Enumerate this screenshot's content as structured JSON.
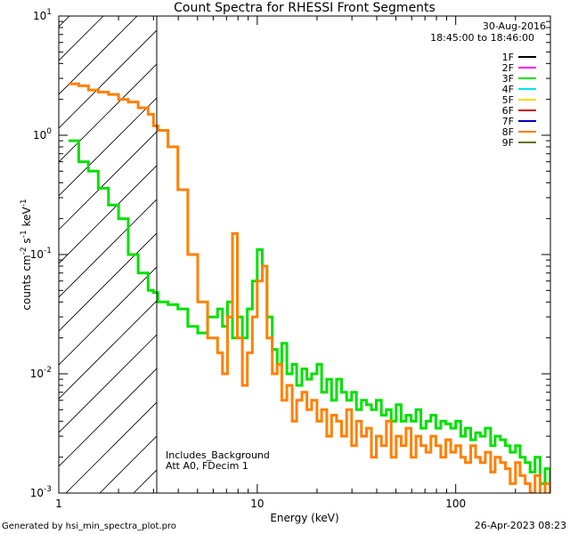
{
  "chart_data": {
    "type": "line",
    "title": "Count Spectra for RHESSI Front Segments",
    "xlabel": "Energy (keV)",
    "ylabel_parts": [
      "counts cm",
      "-2",
      " s",
      "-1",
      " keV",
      "-1"
    ],
    "xscale": "log",
    "yscale": "log",
    "xlim": [
      1,
      300
    ],
    "ylim": [
      0.001,
      10
    ],
    "x_ticks": [
      {
        "value": 1,
        "label": "1"
      },
      {
        "value": 10,
        "label": "10"
      },
      {
        "value": 100,
        "label": "100"
      }
    ],
    "y_ticks": [
      {
        "value": 0.001,
        "base": "10",
        "exp": "-3"
      },
      {
        "value": 0.01,
        "base": "10",
        "exp": "-2"
      },
      {
        "value": 0.1,
        "base": "10",
        "exp": "-1"
      },
      {
        "value": 1,
        "base": "10",
        "exp": "0"
      },
      {
        "value": 10,
        "base": "10",
        "exp": "1"
      }
    ],
    "excluded_region": {
      "from": 1,
      "to": 3
    },
    "date": "30-Aug-2016",
    "time_range": "18:45:00 to 18:46:00",
    "annotations": [
      "Includes_Background",
      "Att A0, FDecim 1"
    ],
    "legend": [
      {
        "label": "1F",
        "color": "#000000"
      },
      {
        "label": "2F",
        "color": "#ff00ff"
      },
      {
        "label": "3F",
        "color": "#00e000"
      },
      {
        "label": "4F",
        "color": "#00e5ee"
      },
      {
        "label": "5F",
        "color": "#ffd700"
      },
      {
        "label": "6F",
        "color": "#d00000"
      },
      {
        "label": "7F",
        "color": "#0000c8"
      },
      {
        "label": "8F",
        "color": "#ff8000"
      },
      {
        "label": "9F",
        "color": "#6b6b00"
      }
    ],
    "series": [
      {
        "name": "3F",
        "color": "#00e000",
        "x": [
          1.12,
          1.26,
          1.41,
          1.58,
          1.78,
          2.0,
          2.24,
          2.51,
          2.82,
          3.0,
          3.16,
          3.55,
          3.98,
          4.47,
          5.01,
          5.62,
          6.31,
          6.68,
          7.08,
          7.5,
          7.94,
          8.41,
          8.91,
          9.44,
          10.0,
          10.6,
          11.2,
          11.9,
          12.6,
          13.3,
          14.1,
          15.0,
          15.8,
          16.8,
          17.8,
          18.8,
          20.0,
          21.1,
          22.4,
          23.7,
          25.1,
          26.6,
          28.2,
          29.9,
          31.6,
          33.5,
          35.5,
          37.6,
          39.8,
          42.2,
          44.7,
          47.3,
          50.1,
          53.1,
          56.2,
          59.6,
          63.1,
          66.8,
          70.8,
          75.0,
          79.4,
          84.1,
          89.1,
          94.4,
          100,
          106,
          112,
          119,
          126,
          133,
          141,
          150,
          158,
          168,
          178,
          188,
          200,
          211,
          224,
          237,
          251,
          266,
          282,
          299
        ],
        "y": [
          0.9,
          0.6,
          0.5,
          0.36,
          0.26,
          0.2,
          0.1,
          0.07,
          0.05,
          0.048,
          0.04,
          0.038,
          0.035,
          0.025,
          0.022,
          0.03,
          0.035,
          0.025,
          0.04,
          0.02,
          0.03,
          0.02,
          0.035,
          0.06,
          0.11,
          0.08,
          0.03,
          0.016,
          0.012,
          0.018,
          0.01,
          0.012,
          0.008,
          0.011,
          0.009,
          0.01,
          0.012,
          0.007,
          0.009,
          0.006,
          0.009,
          0.007,
          0.006,
          0.007,
          0.005,
          0.006,
          0.0055,
          0.005,
          0.006,
          0.0045,
          0.005,
          0.004,
          0.0055,
          0.004,
          0.0045,
          0.004,
          0.005,
          0.0035,
          0.004,
          0.0045,
          0.0035,
          0.004,
          0.0038,
          0.0035,
          0.004,
          0.003,
          0.0035,
          0.0028,
          0.0032,
          0.003,
          0.0035,
          0.0025,
          0.003,
          0.0028,
          0.0025,
          0.0022,
          0.0025,
          0.002,
          0.0018,
          0.0015,
          0.002,
          0.0012,
          0.0016,
          0.001
        ]
      },
      {
        "name": "8F",
        "color": "#ff8000",
        "x": [
          1.12,
          1.26,
          1.41,
          1.58,
          1.78,
          2.0,
          2.24,
          2.51,
          2.82,
          3.0,
          3.16,
          3.55,
          3.98,
          4.47,
          5.01,
          5.62,
          6.31,
          6.68,
          7.08,
          7.5,
          7.94,
          8.41,
          8.91,
          9.44,
          10.0,
          10.6,
          11.2,
          11.9,
          12.6,
          13.3,
          14.1,
          15.0,
          15.8,
          16.8,
          17.8,
          18.8,
          20.0,
          21.1,
          22.4,
          23.7,
          25.1,
          26.6,
          28.2,
          29.9,
          31.6,
          33.5,
          35.5,
          37.6,
          39.8,
          42.2,
          44.7,
          47.3,
          50.1,
          53.1,
          56.2,
          59.6,
          63.1,
          66.8,
          70.8,
          75.0,
          79.4,
          84.1,
          89.1,
          94.4,
          100,
          106,
          112,
          119,
          126,
          133,
          141,
          150,
          158,
          168,
          178,
          188,
          200,
          211,
          224,
          237,
          251,
          266,
          282,
          299
        ],
        "y": [
          2.7,
          2.6,
          2.4,
          2.3,
          2.2,
          2.0,
          1.9,
          1.7,
          1.5,
          1.2,
          1.1,
          0.8,
          0.35,
          0.1,
          0.04,
          0.02,
          0.015,
          0.01,
          0.03,
          0.15,
          0.02,
          0.008,
          0.015,
          0.03,
          0.06,
          0.08,
          0.02,
          0.01,
          0.012,
          0.006,
          0.008,
          0.004,
          0.006,
          0.007,
          0.005,
          0.006,
          0.004,
          0.005,
          0.003,
          0.0045,
          0.004,
          0.003,
          0.005,
          0.0025,
          0.004,
          0.003,
          0.0035,
          0.002,
          0.003,
          0.0025,
          0.004,
          0.002,
          0.003,
          0.0025,
          0.0035,
          0.002,
          0.003,
          0.0025,
          0.0022,
          0.003,
          0.0025,
          0.002,
          0.0028,
          0.0022,
          0.0025,
          0.002,
          0.0018,
          0.0025,
          0.002,
          0.0018,
          0.0022,
          0.0015,
          0.002,
          0.0018,
          0.0016,
          0.0012,
          0.0018,
          0.0014,
          0.0012,
          0.001,
          0.0014,
          0.0009,
          0.0012,
          0.0008
        ]
      }
    ]
  },
  "footer": {
    "generated_by": "Generated by hsi_min_spectra_plot.pro",
    "timestamp": "26-Apr-2023 08:23"
  }
}
